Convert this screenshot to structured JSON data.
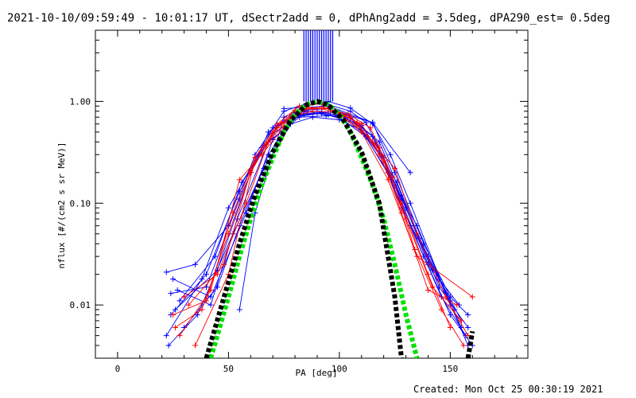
{
  "title": "2021-10-10/09:59:49 - 10:01:17 UT, dSectr2add = 0, dPhAng2add = 3.5deg, dPA290_est=  0.5deg",
  "footer": "Created: Mon Oct 25 00:30:19 2021",
  "chart_data": {
    "type": "line",
    "xlabel": "PA [deg]",
    "ylabel": "nflux [#/(cm2 s sr MeV)]",
    "xlim": [
      -10,
      185
    ],
    "ylim": [
      0.003,
      5.0
    ],
    "yscale": "log",
    "xticks": [
      0,
      50,
      100,
      150
    ],
    "xtick_labels": [
      "0",
      "50",
      "100",
      "150"
    ],
    "yticks": [
      0.01,
      0.1,
      1.0
    ],
    "ytick_labels": [
      "0.01",
      "0.10",
      "1.00"
    ],
    "colors": {
      "blue": "#0000ff",
      "red": "#ff0000",
      "green": "#00e000",
      "black": "#000000"
    },
    "series": [
      {
        "color": "blue",
        "x": [
          22,
          35,
          50,
          62,
          75,
          85,
          95,
          105,
          112,
          120,
          130,
          145,
          158
        ],
        "y": [
          0.021,
          0.025,
          0.06,
          0.3,
          0.8,
          0.95,
          0.93,
          0.8,
          0.62,
          0.28,
          0.09,
          0.015,
          0.006
        ]
      },
      {
        "color": "blue",
        "x": [
          24,
          40,
          55,
          68,
          80,
          90,
          100,
          115,
          125,
          138,
          150,
          158
        ],
        "y": [
          0.013,
          0.015,
          0.11,
          0.5,
          0.78,
          0.8,
          0.78,
          0.62,
          0.2,
          0.04,
          0.012,
          0.008
        ]
      },
      {
        "color": "blue",
        "x": [
          26,
          45,
          60,
          72,
          85,
          95,
          105,
          118,
          128,
          140,
          152
        ],
        "y": [
          0.009,
          0.022,
          0.2,
          0.58,
          0.82,
          0.85,
          0.7,
          0.4,
          0.12,
          0.025,
          0.009
        ]
      },
      {
        "color": "blue",
        "x": [
          30,
          45,
          55,
          68,
          80,
          90,
          100,
          112,
          125,
          138,
          150,
          160
        ],
        "y": [
          0.006,
          0.015,
          0.06,
          0.3,
          0.72,
          0.76,
          0.7,
          0.45,
          0.15,
          0.03,
          0.008,
          0.004
        ]
      },
      {
        "color": "blue",
        "x": [
          25,
          42,
          58,
          70,
          82,
          92,
          102,
          118,
          128,
          145,
          155
        ],
        "y": [
          0.018,
          0.012,
          0.08,
          0.42,
          0.75,
          0.78,
          0.72,
          0.35,
          0.09,
          0.018,
          0.006
        ]
      },
      {
        "color": "blue",
        "x": [
          22,
          38,
          50,
          65,
          78,
          88,
          100,
          110,
          122,
          135,
          148,
          158
        ],
        "y": [
          0.005,
          0.018,
          0.09,
          0.35,
          0.6,
          0.7,
          0.66,
          0.52,
          0.2,
          0.06,
          0.013,
          0.004
        ]
      },
      {
        "color": "blue",
        "x": [
          28,
          44,
          56,
          70,
          85,
          95,
          105,
          115,
          128,
          140,
          155
        ],
        "y": [
          0.011,
          0.03,
          0.16,
          0.48,
          0.8,
          0.74,
          0.68,
          0.45,
          0.11,
          0.03,
          0.007
        ]
      },
      {
        "color": "blue",
        "x": [
          23,
          36,
          52,
          66,
          80,
          92,
          108,
          118,
          132,
          146,
          157
        ],
        "y": [
          0.004,
          0.008,
          0.05,
          0.22,
          0.7,
          0.77,
          0.6,
          0.3,
          0.06,
          0.012,
          0.005
        ]
      },
      {
        "color": "blue",
        "x": [
          55,
          62,
          75,
          85,
          95,
          105,
          115,
          123,
          132,
          150
        ],
        "y": [
          0.009,
          0.08,
          0.7,
          0.9,
          1.0,
          0.86,
          0.6,
          0.3,
          0.1,
          0.01
        ]
      },
      {
        "color": "blue",
        "x": [
          75,
          95,
          115,
          132
        ],
        "y": [
          0.85,
          0.9,
          0.62,
          0.2
        ]
      },
      {
        "color": "blue",
        "x": [
          24,
          40,
          55,
          70,
          84,
          96,
          110,
          126,
          142,
          154
        ],
        "y": [
          0.008,
          0.02,
          0.13,
          0.55,
          0.74,
          0.79,
          0.58,
          0.16,
          0.022,
          0.01
        ]
      },
      {
        "color": "blue",
        "x": [
          27,
          42,
          54,
          68,
          82,
          94,
          104,
          120,
          136,
          150
        ],
        "y": [
          0.014,
          0.01,
          0.07,
          0.4,
          0.7,
          0.72,
          0.74,
          0.28,
          0.045,
          0.011
        ]
      },
      {
        "color": "red",
        "x": [
          25,
          40,
          52,
          62,
          72,
          82,
          92,
          102,
          110,
          120,
          128,
          140,
          153
        ],
        "y": [
          0.008,
          0.011,
          0.08,
          0.28,
          0.6,
          0.9,
          0.95,
          0.72,
          0.6,
          0.26,
          0.08,
          0.014,
          0.01
        ]
      },
      {
        "color": "red",
        "x": [
          28,
          42,
          55,
          65,
          75,
          85,
          95,
          105,
          115,
          125,
          135,
          148,
          158
        ],
        "y": [
          0.005,
          0.014,
          0.17,
          0.3,
          0.56,
          0.84,
          0.86,
          0.7,
          0.4,
          0.22,
          0.05,
          0.012,
          0.005
        ]
      },
      {
        "color": "red",
        "x": [
          30,
          45,
          58,
          68,
          78,
          88,
          98,
          108,
          118,
          128,
          140,
          150
        ],
        "y": [
          0.012,
          0.02,
          0.1,
          0.4,
          0.7,
          0.8,
          0.78,
          0.58,
          0.35,
          0.1,
          0.02,
          0.006
        ]
      },
      {
        "color": "red",
        "x": [
          26,
          38,
          50,
          60,
          70,
          80,
          92,
          104,
          114,
          124,
          134,
          146,
          156
        ],
        "y": [
          0.006,
          0.009,
          0.05,
          0.2,
          0.5,
          0.82,
          0.88,
          0.75,
          0.55,
          0.18,
          0.035,
          0.009,
          0.004
        ]
      },
      {
        "color": "red",
        "x": [
          32,
          48,
          60,
          72,
          84,
          96,
          108,
          118,
          130,
          142,
          155
        ],
        "y": [
          0.01,
          0.025,
          0.21,
          0.55,
          0.84,
          0.85,
          0.62,
          0.3,
          0.07,
          0.015,
          0.007
        ]
      },
      {
        "color": "red",
        "x": [
          35,
          50,
          62,
          74,
          86,
          98,
          110,
          122,
          135,
          160
        ],
        "y": [
          0.004,
          0.02,
          0.28,
          0.62,
          0.88,
          0.8,
          0.5,
          0.17,
          0.03,
          0.012
        ]
      }
    ],
    "fit_curves": [
      {
        "color": "green",
        "style": "thick-dashed",
        "x": [
          42,
          50,
          55,
          60,
          65,
          70,
          75,
          80,
          85,
          90,
          95,
          100,
          105,
          110,
          115,
          120,
          125,
          130,
          135
        ],
        "y": [
          0.003,
          0.012,
          0.03,
          0.07,
          0.15,
          0.28,
          0.5,
          0.75,
          0.93,
          1.0,
          0.93,
          0.75,
          0.5,
          0.28,
          0.15,
          0.07,
          0.025,
          0.008,
          0.003
        ]
      },
      {
        "color": "black",
        "style": "thick-dashed",
        "x": [
          40,
          48,
          55,
          62,
          70,
          78,
          85,
          90,
          95,
          102,
          110,
          118,
          125,
          128
        ],
        "y": [
          0.003,
          0.012,
          0.04,
          0.12,
          0.32,
          0.65,
          0.92,
          1.0,
          0.92,
          0.65,
          0.32,
          0.1,
          0.012,
          0.003
        ]
      },
      {
        "color": "black",
        "style": "thick-dashed",
        "x": [
          158,
          160
        ],
        "y": [
          0.003,
          0.0055
        ]
      }
    ],
    "spike": {
      "color": "blue",
      "x_range": [
        84,
        97
      ],
      "y_from": 1.0,
      "y_to": 5.0
    }
  }
}
